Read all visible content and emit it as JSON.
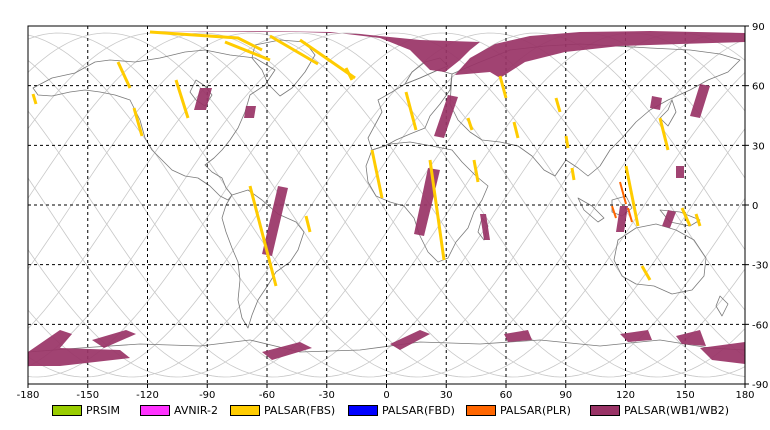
{
  "map": {
    "lon_ticks": [
      "-180",
      "-150",
      "-120",
      "-90",
      "-60",
      "-30",
      "0",
      "30",
      "60",
      "90",
      "120",
      "150",
      "180"
    ],
    "lat_ticks": [
      "90",
      "60",
      "30",
      "0",
      "-30",
      "-60",
      "-90"
    ],
    "background": "#ffffff",
    "coastline_color": "#7a7a7a",
    "orbit_color": "#c8c8c8",
    "grid_color": "#000000"
  },
  "legend": [
    {
      "label": "PRSIM",
      "color": "#99cc00"
    },
    {
      "label": "AVNIR-2",
      "color": "#ff33ff"
    },
    {
      "label": "PALSAR(FBS)",
      "color": "#ffcc00"
    },
    {
      "label": "PALSAR(FBD)",
      "color": "#0000ff"
    },
    {
      "label": "PALSAR(PLR)",
      "color": "#ff6600"
    },
    {
      "label": "PALSAR(WB1/WB2)",
      "color": "#993366"
    }
  ]
}
